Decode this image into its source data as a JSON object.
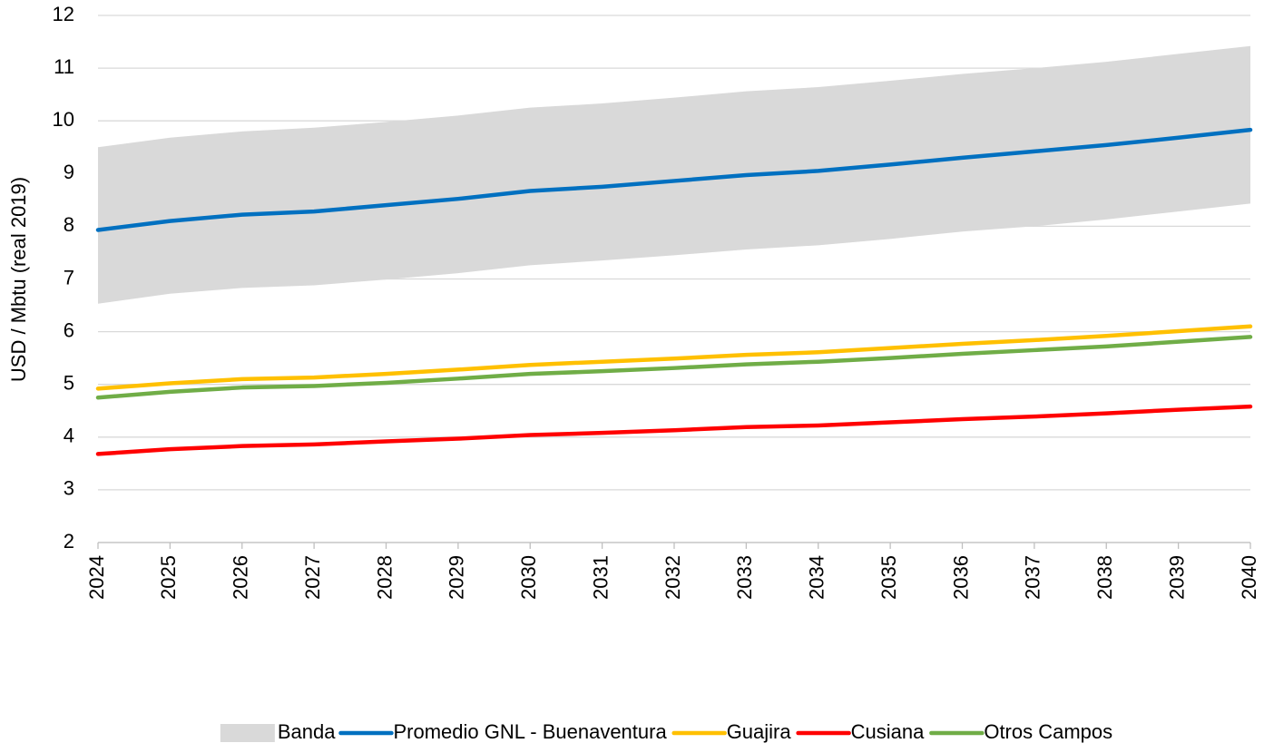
{
  "chart_data": {
    "type": "line",
    "y_label": "USD / Mbtu (real 2019)",
    "categories": [
      "2024",
      "2025",
      "2026",
      "2027",
      "2028",
      "2029",
      "2030",
      "2031",
      "2032",
      "2033",
      "2034",
      "2035",
      "2036",
      "2037",
      "2038",
      "2039",
      "2040"
    ],
    "ylim": [
      2,
      12
    ],
    "yticks": [
      2,
      3,
      4,
      5,
      6,
      7,
      8,
      9,
      10,
      11,
      12
    ],
    "grid": true,
    "legend": "bottom",
    "band": {
      "name": "Banda",
      "color": "#d9d9d9",
      "upper": [
        9.5,
        9.68,
        9.8,
        9.87,
        9.98,
        10.1,
        10.25,
        10.33,
        10.44,
        10.56,
        10.64,
        10.76,
        10.89,
        11.0,
        11.12,
        11.27,
        11.42
      ],
      "lower": [
        6.53,
        6.72,
        6.83,
        6.88,
        6.99,
        7.11,
        7.26,
        7.35,
        7.45,
        7.56,
        7.64,
        7.76,
        7.9,
        8.0,
        8.13,
        8.28,
        8.43
      ]
    },
    "series": [
      {
        "name": "Promedio GNL - Buenaventura",
        "color": "#0070c0",
        "values": [
          7.93,
          8.1,
          8.22,
          8.28,
          8.4,
          8.52,
          8.67,
          8.75,
          8.86,
          8.97,
          9.05,
          9.17,
          9.3,
          9.42,
          9.54,
          9.68,
          9.83
        ]
      },
      {
        "name": "Guajira",
        "color": "#ffc000",
        "values": [
          4.92,
          5.02,
          5.1,
          5.13,
          5.2,
          5.28,
          5.37,
          5.43,
          5.49,
          5.56,
          5.61,
          5.69,
          5.77,
          5.84,
          5.92,
          6.01,
          6.1
        ]
      },
      {
        "name": "Cusiana",
        "color": "#ff0000",
        "values": [
          3.68,
          3.77,
          3.83,
          3.86,
          3.92,
          3.97,
          4.04,
          4.08,
          4.13,
          4.19,
          4.22,
          4.28,
          4.34,
          4.39,
          4.45,
          4.52,
          4.58
        ]
      },
      {
        "name": "Otros Campos",
        "color": "#70ad47",
        "values": [
          4.75,
          4.86,
          4.94,
          4.97,
          5.03,
          5.11,
          5.2,
          5.25,
          5.31,
          5.38,
          5.43,
          5.5,
          5.58,
          5.65,
          5.72,
          5.81,
          5.9
        ]
      }
    ]
  }
}
